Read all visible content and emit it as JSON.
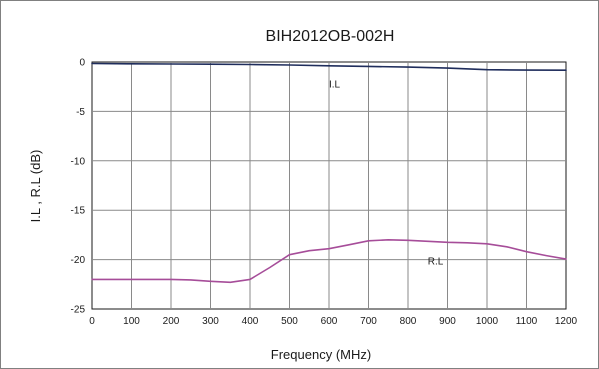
{
  "chart_data": {
    "type": "line",
    "title": "BIH2012OB-002H",
    "xlabel": "Frequency (MHz)",
    "ylabel": "I.L , R.L (dB)",
    "xlim": [
      0,
      1200
    ],
    "ylim": [
      -25,
      0
    ],
    "x_ticks": [
      "0",
      "100",
      "200",
      "300",
      "400",
      "500",
      "600",
      "700",
      "800",
      "900",
      "1000",
      "1100",
      "1200"
    ],
    "y_ticks": [
      "0",
      "-5",
      "-10",
      "-15",
      "-20",
      "-25"
    ],
    "grid": true,
    "series": [
      {
        "name": "I.L",
        "color": "#1f2d5c",
        "label_at": [
          600,
          -2.6
        ],
        "x": [
          0,
          100,
          200,
          300,
          400,
          500,
          600,
          700,
          800,
          900,
          1000,
          1100,
          1200
        ],
        "y": [
          -0.15,
          -0.18,
          -0.2,
          -0.22,
          -0.25,
          -0.3,
          -0.38,
          -0.45,
          -0.52,
          -0.62,
          -0.78,
          -0.82,
          -0.83
        ]
      },
      {
        "name": "R.L",
        "color": "#a64d99",
        "label_at": [
          850,
          -20.5
        ],
        "x": [
          0,
          50,
          100,
          150,
          200,
          250,
          300,
          350,
          400,
          450,
          500,
          550,
          600,
          650,
          700,
          750,
          800,
          850,
          900,
          950,
          1000,
          1050,
          1100,
          1150,
          1200
        ],
        "y": [
          -22.0,
          -22.0,
          -22.0,
          -22.0,
          -22.0,
          -22.05,
          -22.2,
          -22.3,
          -22.0,
          -20.8,
          -19.5,
          -19.1,
          -18.9,
          -18.5,
          -18.1,
          -18.0,
          -18.05,
          -18.15,
          -18.25,
          -18.3,
          -18.4,
          -18.7,
          -19.2,
          -19.6,
          -19.95
        ]
      }
    ]
  }
}
